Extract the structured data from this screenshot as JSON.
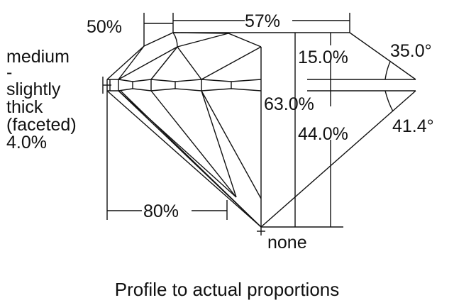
{
  "labels": {
    "table": "57%",
    "star": "50%",
    "crown_height": "15.0%",
    "crown_angle": "35.0°",
    "total_depth": "63.0%",
    "pavilion_depth": "44.0%",
    "pavilion_angle": "41.4°",
    "lower_half": "80%",
    "culet": "none",
    "girdle": [
      "medium",
      "-",
      "slightly",
      "thick",
      "(faceted)",
      "4.0%"
    ]
  },
  "caption": "Profile to actual proportions"
}
